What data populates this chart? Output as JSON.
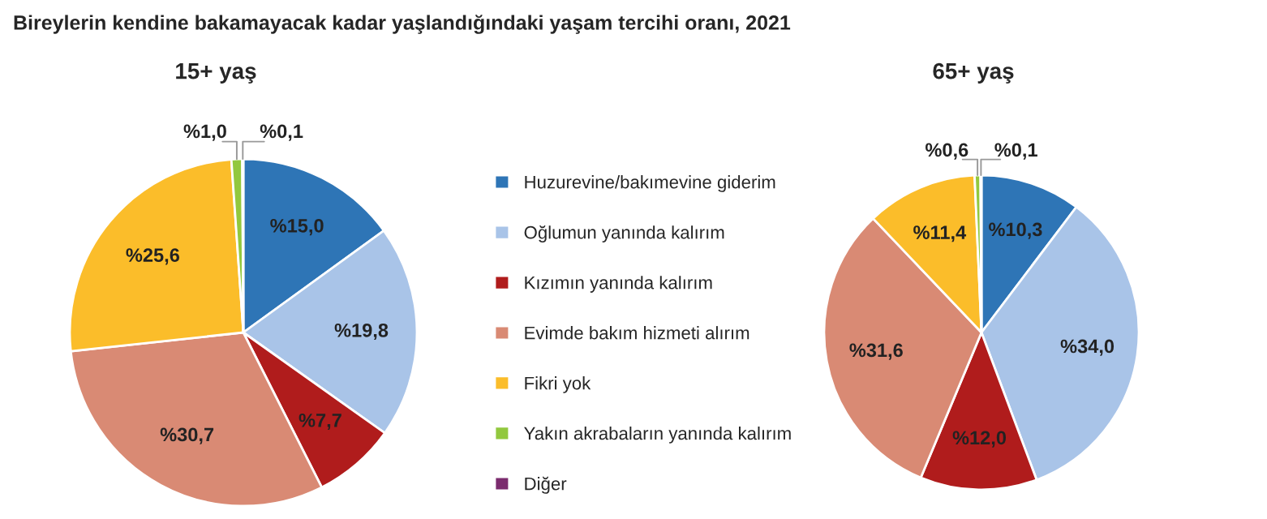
{
  "chart_data": [
    {
      "type": "pie",
      "title": "Bireylerin kendine bakamayacak kadar yaşlandığındaki yaşam tercihi oranı, 2021",
      "subtitle": "15+ yaş",
      "categories": [
        "Huzurevine/bakımevine giderim",
        "Oğlumun yanında kalırım",
        "Kızımın yanında kalırım",
        "Evimde bakım hizmeti alırım",
        "Fikri yok",
        "Yakın akrabaların yanında kalırım",
        "Diğer"
      ],
      "values": [
        15.0,
        19.8,
        7.7,
        30.7,
        25.6,
        1.0,
        0.1
      ],
      "value_labels": [
        "%15,0",
        "%19,8",
        "%7,7",
        "%30,7",
        "%25,6",
        "%1,0",
        "%0,1"
      ],
      "colors": [
        "#2e75b6",
        "#a9c4e8",
        "#b01c1c",
        "#d98a74",
        "#fbbd2a",
        "#92c83e",
        "#7b2c6e"
      ],
      "legend": "right"
    },
    {
      "type": "pie",
      "title": "65+ yaş",
      "categories": [
        null,
        null,
        null,
        null,
        null,
        null,
        null
      ],
      "values": [
        10.3,
        34.0,
        12.0,
        31.6,
        11.4,
        0.6,
        0.1
      ],
      "value_labels": [
        "%10,3",
        "%34,0",
        "%12,0",
        "%31,6",
        "%11,4",
        "%0,6",
        "%0,1"
      ],
      "colors": [
        "#2e75b6",
        "#a9c4e8",
        "#b01c1c",
        "#d98a74",
        "#fbbd2a",
        "#92c83e",
        "#7b2c6e"
      ]
    }
  ]
}
